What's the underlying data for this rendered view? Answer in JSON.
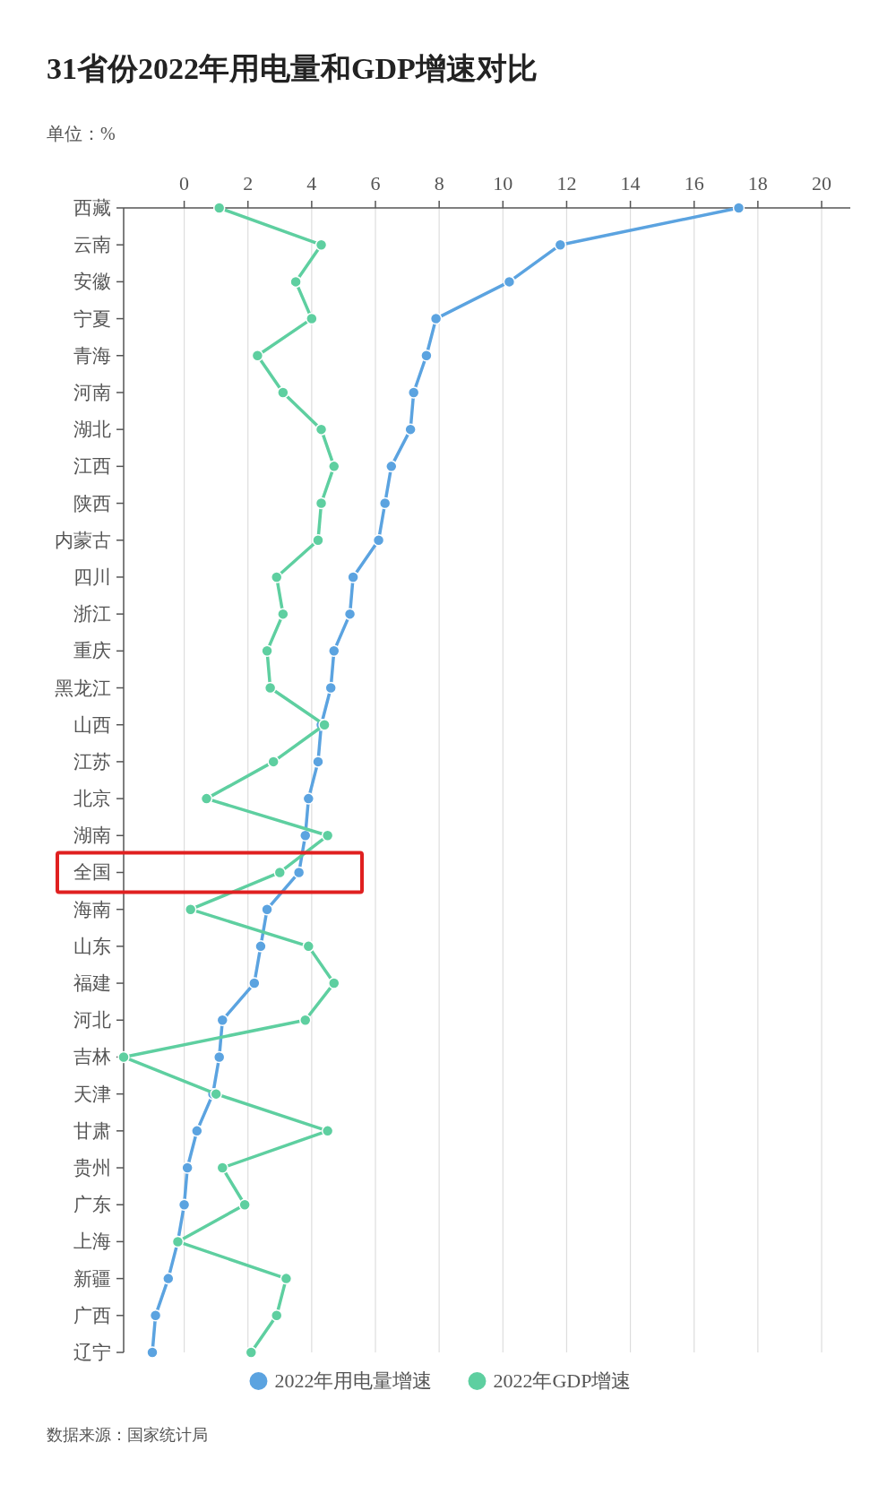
{
  "chart_data": {
    "type": "line",
    "orientation": "horizontal",
    "title": "31省份2022年用电量和GDP增速对比",
    "annotations": [
      "单位：%",
      "数据来源：国家统计局"
    ],
    "categories": [
      "西藏",
      "云南",
      "安徽",
      "宁夏",
      "青海",
      "河南",
      "湖北",
      "江西",
      "陕西",
      "内蒙古",
      "四川",
      "浙江",
      "重庆",
      "黑龙江",
      "山西",
      "江苏",
      "北京",
      "湖南",
      "全国",
      "海南",
      "山东",
      "福建",
      "河北",
      "吉林",
      "天津",
      "甘肃",
      "贵州",
      "广东",
      "上海",
      "新疆",
      "广西",
      "辽宁"
    ],
    "series": [
      {
        "name": "2022年用电量增速",
        "color": "#5ba3e0",
        "values": [
          17.4,
          11.8,
          10.2,
          7.9,
          7.6,
          7.2,
          7.1,
          6.5,
          6.3,
          6.1,
          5.3,
          5.2,
          4.7,
          4.6,
          4.3,
          4.2,
          3.9,
          3.8,
          3.6,
          2.6,
          2.4,
          2.2,
          1.2,
          1.1,
          0.9,
          0.4,
          0.1,
          0.0,
          -0.2,
          -0.5,
          -0.9,
          -1.0
        ]
      },
      {
        "name": "2022年GDP增速",
        "color": "#5ecfa0",
        "values": [
          1.1,
          4.3,
          3.5,
          4.0,
          2.3,
          3.1,
          4.3,
          4.7,
          4.3,
          4.2,
          2.9,
          3.1,
          2.6,
          2.7,
          4.4,
          2.8,
          0.7,
          4.5,
          3.0,
          0.2,
          3.9,
          4.7,
          3.8,
          -1.9,
          1.0,
          4.5,
          1.2,
          1.9,
          -0.2,
          3.2,
          2.9,
          2.1
        ]
      }
    ],
    "xlim": [
      -1.9,
      20.9
    ],
    "xticks": [
      0,
      2,
      4,
      6,
      8,
      10,
      12,
      14,
      16,
      18,
      20
    ],
    "grid": "x",
    "legend": "bottom",
    "marker": "circle",
    "line_style": "solid"
  }
}
